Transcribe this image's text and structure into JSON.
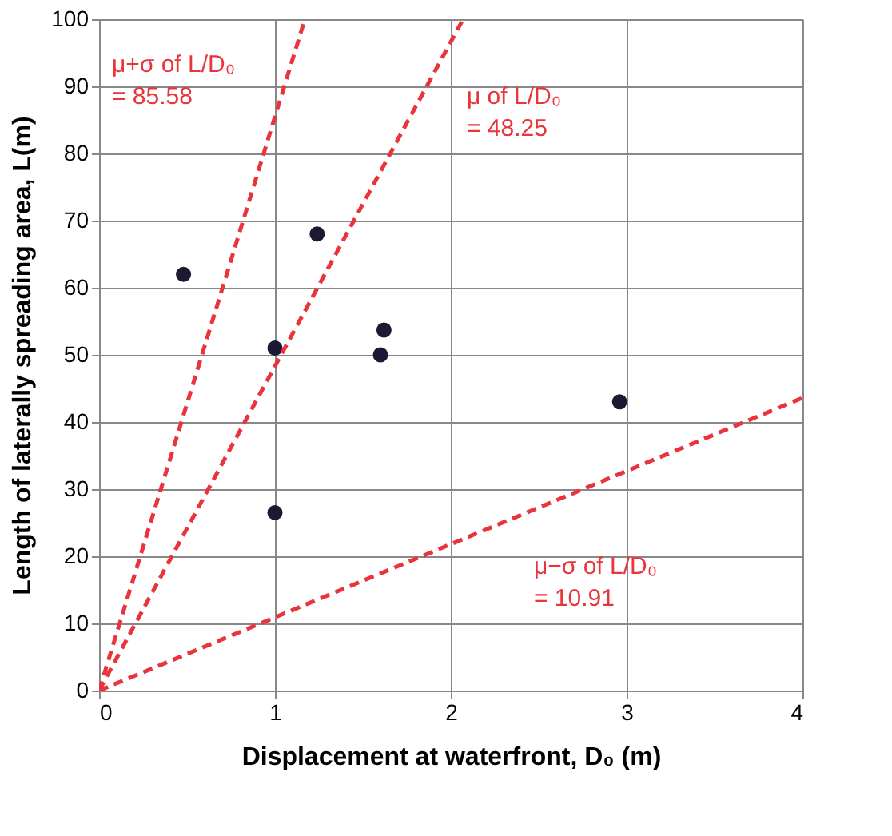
{
  "chart_data": {
    "type": "scatter",
    "xlabel": "Displacement at waterfront, D₀ (m)",
    "ylabel": "Length of laterally spreading area, L(m)",
    "series": [
      {
        "color": "#1c1a33",
        "marker": "circle",
        "x": [
          0.48,
          1.0,
          1.0,
          1.24,
          1.6,
          1.62,
          2.96
        ],
        "values": [
          62,
          51,
          26.5,
          68,
          50,
          53.7,
          43
        ]
      },
      {
        "type": "line",
        "color": "#e8343a",
        "line_style": "dashed",
        "marker": "none",
        "x": [
          0,
          1.17
        ],
        "values": [
          0,
          100
        ]
      },
      {
        "type": "line",
        "color": "#e8343a",
        "line_style": "dashed",
        "marker": "none",
        "x": [
          0,
          2.07
        ],
        "values": [
          0,
          100
        ]
      },
      {
        "type": "line",
        "color": "#e8343a",
        "line_style": "dashed",
        "marker": "none",
        "x": [
          0,
          4
        ],
        "values": [
          0,
          43.6
        ]
      }
    ],
    "annotations": [
      "μ+σ of L/D₀\n= 85.58",
      "μ of L/D₀\n= 48.25",
      "μ−σ of L/D₀\n= 10.91"
    ],
    "xlim": [
      0,
      4
    ],
    "xticks": [
      0,
      1,
      2,
      3,
      4
    ],
    "ylim": [
      0,
      100
    ],
    "yticks": [
      0,
      10,
      20,
      30,
      40,
      50,
      60,
      70,
      80,
      90,
      100
    ],
    "grid": true
  }
}
